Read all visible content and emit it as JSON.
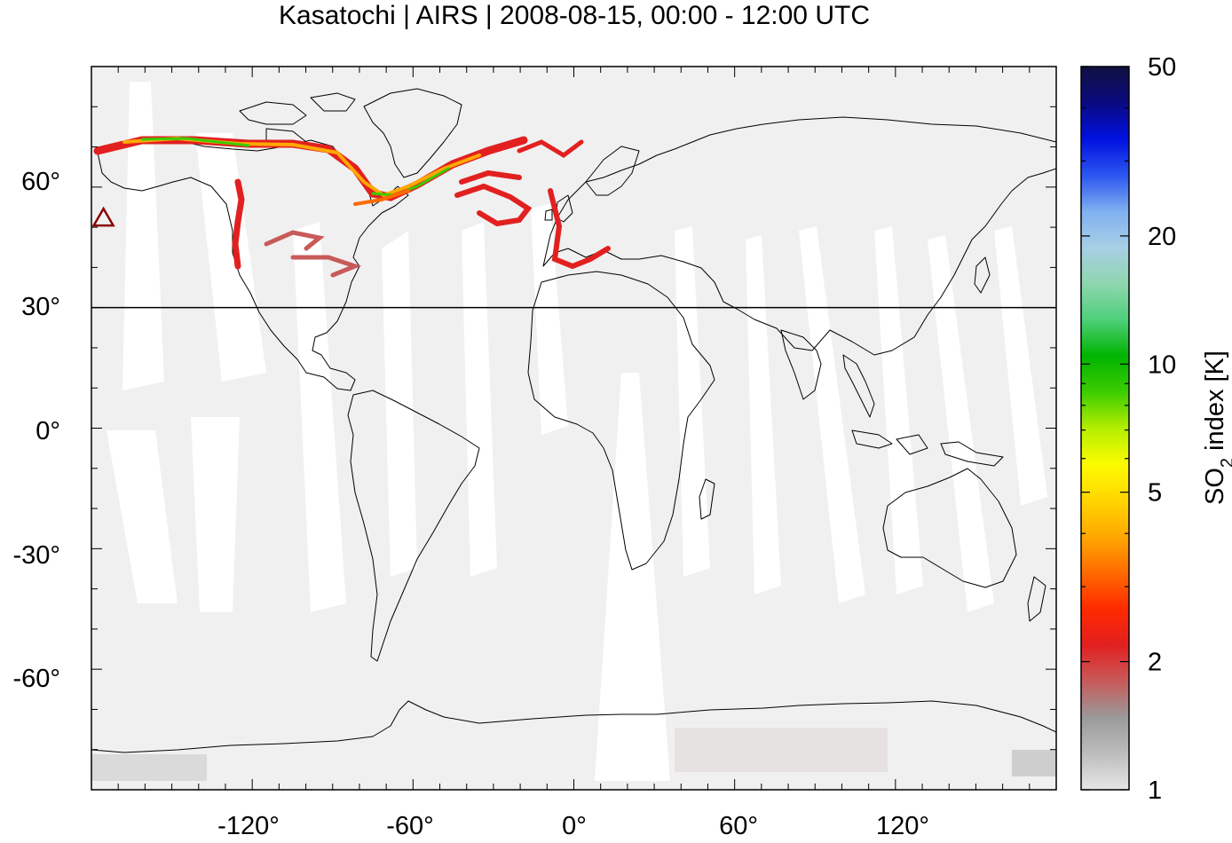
{
  "title": "Kasatochi | AIRS | 2008-08-15, 00:00 - 12:00 UTC",
  "map": {
    "projection": "equirectangular",
    "lon_range": [
      -180,
      180
    ],
    "lat_range": [
      -90,
      90
    ],
    "x_ticks": [
      "-120°",
      "-60°",
      "0°",
      "60°",
      "120°"
    ],
    "y_ticks": [
      "60°",
      "30°",
      "0°",
      "-30°",
      "-60°"
    ],
    "reference_parallel_lat": 30,
    "volcano_marker": {
      "name": "Kasatochi",
      "lon": -175.5,
      "lat": 52.2,
      "symbol": "triangle",
      "color": "#8b0000"
    },
    "background_color": "#f0f0f0",
    "swath_gap_color": "#ffffff"
  },
  "colorbar": {
    "label_main": "SO",
    "label_sub": "2",
    "label_rest": " index [K]",
    "scale": "log",
    "range": [
      1,
      50
    ],
    "tick_labels": [
      "1",
      "2",
      "5",
      "10",
      "20",
      "50"
    ],
    "tick_values": [
      1,
      2,
      5,
      10,
      20,
      50
    ],
    "colors": [
      "#e6e6e6",
      "#bdbdbd",
      "#9a9a9a",
      "#c85a5a",
      "#e22020",
      "#ff2a00",
      "#ff6a00",
      "#ffa800",
      "#ffd500",
      "#fcfc00",
      "#b4ee00",
      "#3ccc00",
      "#00b400",
      "#4ecf7a",
      "#8fd6b0",
      "#a8cfe6",
      "#7fb0f0",
      "#2a55f0",
      "#0010e0",
      "#0a0a80",
      "#101040"
    ]
  }
}
